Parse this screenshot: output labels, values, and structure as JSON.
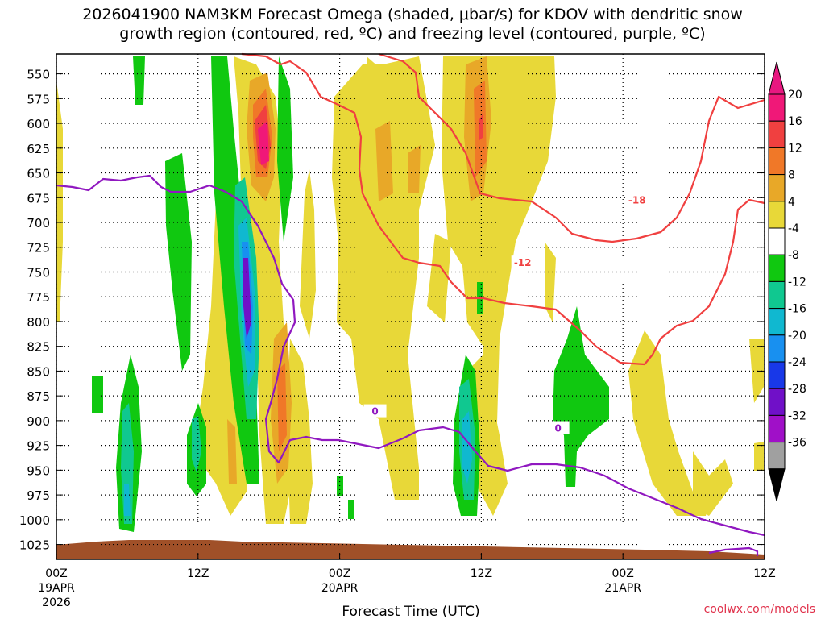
{
  "chart_data": {
    "type": "heatmap",
    "title_line1": "2026041900 NAM3KM Forecast Omega (shaded, μbar/s) for KDOV with dendritic snow",
    "title_line2": "growth region (contoured, red, ºC) and freezing level (contoured, purple, ºC)",
    "xlabel": "Forecast Time (UTC)",
    "credit": "coolwx.com/models",
    "y_ticks": [
      "550",
      "575",
      "600",
      "625",
      "650",
      "675",
      "700",
      "725",
      "750",
      "775",
      "800",
      "825",
      "850",
      "875",
      "900",
      "925",
      "950",
      "975",
      "1000",
      "1025"
    ],
    "x_ticks": [
      "00Z",
      "12Z",
      "00Z",
      "12Z",
      "00Z",
      "12Z"
    ],
    "x_hours": [
      0,
      12,
      24,
      36,
      48,
      60
    ],
    "dates": [
      {
        "hour": 0,
        "line1": "19APR",
        "line2": "2026"
      },
      {
        "hour": 24,
        "line1": "20APR",
        "line2": ""
      },
      {
        "hour": 48,
        "line1": "21APR",
        "line2": ""
      }
    ],
    "xlim": [
      0,
      60
    ],
    "ylim": [
      530,
      1040
    ],
    "colorbar": {
      "labels": [
        "20",
        "16",
        "12",
        "8",
        "4",
        "-4",
        "-8",
        "-12",
        "-16",
        "-20",
        "-24",
        "-28",
        "-32",
        "-36"
      ],
      "colors": [
        "#f01878",
        "#f04040",
        "#f07828",
        "#e8a828",
        "#e8d838",
        "#ffffff",
        "#10c810",
        "#10c890",
        "#10b8d0",
        "#1890f0",
        "#1838e8",
        "#7010c8",
        "#a010c8",
        "#a0a0a0"
      ],
      "top_arrow": "#e81880",
      "bottom_arrow": "#000000"
    },
    "contours": {
      "red_labels": [
        {
          "hour": 49.2,
          "p": 677,
          "text": "-18"
        },
        {
          "hour": 39.5,
          "p": 740,
          "text": "-12"
        }
      ],
      "purple_labels": [
        {
          "hour": 27.0,
          "p": 890,
          "text": "0"
        },
        {
          "hour": 42.5,
          "p": 907,
          "text": "0"
        }
      ],
      "red_color": "#f04040",
      "purple_color": "#9018c0"
    },
    "terrain_color": "#a05028"
  }
}
